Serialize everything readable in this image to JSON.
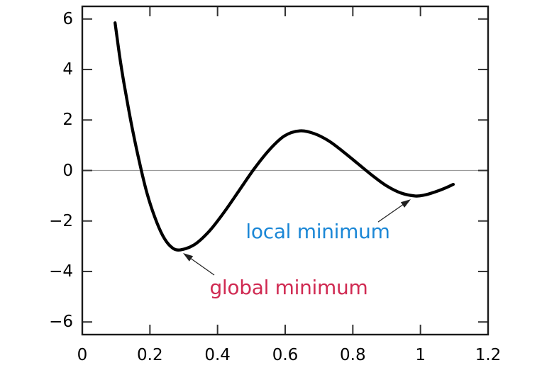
{
  "figure": {
    "background": "#ffffff",
    "frame_color": "#1a1a1a",
    "tick_color": "#333333",
    "zero_line_color": "#9a9a9a",
    "arrow_color": "#1f1f1f"
  },
  "chart_data": {
    "type": "line",
    "title": "",
    "xlabel": "",
    "ylabel": "",
    "xlim": [
      0,
      1.2
    ],
    "ylim": [
      -6.5,
      6.5
    ],
    "grid": false,
    "zero_line": true,
    "legend": false,
    "x_ticks": [
      {
        "v": 0,
        "label": "0"
      },
      {
        "v": 0.2,
        "label": "0.2"
      },
      {
        "v": 0.4,
        "label": "0.4"
      },
      {
        "v": 0.6,
        "label": "0.6"
      },
      {
        "v": 0.8,
        "label": "0.8"
      },
      {
        "v": 1,
        "label": "1"
      },
      {
        "v": 1.2,
        "label": "1.2"
      }
    ],
    "y_ticks": [
      {
        "v": -6,
        "label": "−6"
      },
      {
        "v": -4,
        "label": "−4"
      },
      {
        "v": -2,
        "label": "−2"
      },
      {
        "v": 0,
        "label": "0"
      },
      {
        "v": 2,
        "label": "2"
      },
      {
        "v": 4,
        "label": "4"
      },
      {
        "v": 6,
        "label": "6"
      }
    ],
    "series": [
      {
        "color": "#000000",
        "points": [
          [
            0.097,
            5.85
          ],
          [
            0.11,
            4.57
          ],
          [
            0.123,
            3.48
          ],
          [
            0.144,
            1.93
          ],
          [
            0.168,
            0.39
          ],
          [
            0.191,
            -0.88
          ],
          [
            0.215,
            -1.87
          ],
          [
            0.238,
            -2.58
          ],
          [
            0.26,
            -2.99
          ],
          [
            0.285,
            -3.15
          ],
          [
            0.33,
            -2.95
          ],
          [
            0.375,
            -2.41
          ],
          [
            0.419,
            -1.66
          ],
          [
            0.464,
            -0.79
          ],
          [
            0.509,
            0.08
          ],
          [
            0.554,
            0.83
          ],
          [
            0.598,
            1.37
          ],
          [
            0.643,
            1.57
          ],
          [
            0.686,
            1.46
          ],
          [
            0.729,
            1.17
          ],
          [
            0.771,
            0.75
          ],
          [
            0.814,
            0.28
          ],
          [
            0.857,
            -0.19
          ],
          [
            0.9,
            -0.61
          ],
          [
            0.942,
            -0.89
          ],
          [
            0.985,
            -1.01
          ],
          [
            1.013,
            -0.97
          ],
          [
            1.041,
            -0.86
          ],
          [
            1.069,
            -0.72
          ],
          [
            1.097,
            -0.55
          ]
        ],
        "extrema": {
          "global_minimum": [
            0.285,
            -3.15
          ],
          "local_maximum": [
            0.643,
            1.57
          ],
          "local_minimum": [
            0.985,
            -1.01
          ]
        }
      }
    ],
    "annotations": [
      {
        "id": "local-minimum",
        "text": "local minimum",
        "color": "#1b87d6",
        "label_pos": [
          0.6965,
          -2.43
        ],
        "arrow_from": [
          0.8748,
          -2.04
        ],
        "arrow_to": [
          0.9713,
          -1.14
        ]
      },
      {
        "id": "global-minimum",
        "text": "global minimum",
        "color": "#d02a52",
        "label_pos": [
          0.6104,
          -4.65
        ],
        "arrow_from": [
          0.3902,
          -4.14
        ],
        "arrow_to": [
          0.2979,
          -3.27
        ]
      }
    ]
  }
}
